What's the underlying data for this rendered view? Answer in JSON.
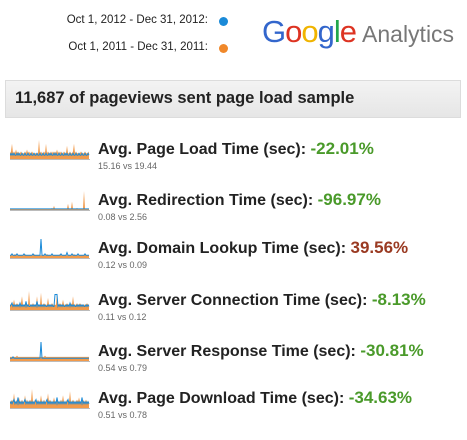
{
  "legend": [
    {
      "label": "Oct 1, 2012 - Dec 31, 2012:",
      "color": "#1a8ad8"
    },
    {
      "label": "Oct 1, 2011 - Dec 31, 2011:",
      "color": "#f0882a"
    }
  ],
  "logo": {
    "letters": [
      "G",
      "o",
      "o",
      "g",
      "l",
      "e"
    ],
    "colors": [
      "#3366cc",
      "#dd3322",
      "#f0b400",
      "#3366cc",
      "#22a64a",
      "#dd3322"
    ],
    "analytics": "Analytics"
  },
  "banner": {
    "text": "11,687 of pageviews sent page load sample"
  },
  "colors": {
    "positive": "#4a9a2a",
    "negative": "#9a3a22",
    "series_2012": "#1a8ad8",
    "series_2011": "#f0882a"
  },
  "metrics": [
    {
      "label": "Avg. Page Load Time (sec):",
      "change": "-22.01%",
      "good": true,
      "compare": "15.16 vs 19.44",
      "spark_2011": [
        3,
        4,
        8,
        3,
        4,
        3,
        5,
        3,
        4,
        3,
        3,
        4,
        3,
        3,
        3,
        4,
        3,
        5,
        3,
        4,
        3,
        3,
        4,
        3,
        3,
        3,
        3,
        3,
        3,
        10,
        3,
        4,
        3,
        3,
        4,
        3,
        8,
        3,
        4,
        3,
        3,
        4,
        3,
        4,
        3,
        4,
        3,
        5,
        3,
        4,
        3,
        4,
        3,
        3,
        4,
        3,
        3,
        7,
        3,
        3,
        4,
        3,
        3,
        4,
        8,
        3,
        4,
        3,
        3,
        3,
        3,
        4,
        3,
        3,
        3,
        4,
        3,
        3,
        3,
        4
      ],
      "spark_2012": [
        3,
        2,
        3,
        2,
        3,
        2,
        2,
        3,
        2,
        3,
        2,
        2,
        3,
        2,
        2,
        3,
        2,
        2,
        3,
        2,
        2,
        3,
        2,
        2,
        3,
        2,
        2,
        3,
        2,
        2,
        3,
        2,
        2,
        3,
        2,
        2,
        3,
        2,
        2,
        3,
        2,
        3,
        2,
        2,
        3,
        2,
        3,
        2,
        2,
        3,
        2,
        2,
        3,
        2,
        2,
        3,
        2,
        3,
        2,
        2,
        3,
        2,
        2,
        3,
        2,
        2,
        3,
        2,
        2,
        3,
        2,
        2,
        3,
        2,
        2,
        3,
        2,
        2,
        3,
        2
      ]
    },
    {
      "label": "Avg. Redirection Time (sec):",
      "change": "-96.97%",
      "good": true,
      "compare": "0.08 vs 2.56",
      "spark_2011": [
        1,
        1,
        1,
        1,
        1,
        1,
        1,
        1,
        1,
        1,
        1,
        1,
        1,
        1,
        1,
        1,
        1,
        1,
        1,
        1,
        1,
        1,
        1,
        1,
        1,
        1,
        1,
        1,
        1,
        1,
        1,
        1,
        1,
        1,
        1,
        1,
        1,
        1,
        1,
        1,
        1,
        1,
        2,
        1,
        4,
        1,
        1,
        1,
        1,
        1,
        1,
        1,
        1,
        1,
        1,
        1,
        1,
        1,
        6,
        1,
        1,
        1,
        8,
        1,
        1,
        1,
        1,
        2,
        1,
        1,
        1,
        1,
        1,
        1,
        18,
        1,
        1,
        1,
        1,
        1
      ],
      "spark_2012": [
        1,
        1,
        1,
        1,
        1,
        1,
        1,
        1,
        1,
        1,
        1,
        1,
        1,
        1,
        1,
        1,
        1,
        1,
        1,
        1,
        1,
        1,
        1,
        1,
        1,
        1,
        1,
        1,
        1,
        1,
        1,
        1,
        1,
        1,
        1,
        1,
        1,
        1,
        1,
        1,
        1,
        1,
        1,
        1,
        1,
        1,
        1,
        1,
        1,
        1,
        1,
        1,
        1,
        1,
        1,
        1,
        1,
        1,
        1,
        1,
        1,
        1,
        1,
        1,
        1,
        1,
        1,
        1,
        1,
        1,
        1,
        1,
        1,
        1,
        1,
        1,
        1,
        1,
        1,
        1
      ]
    },
    {
      "label": "Avg. Domain Lookup Time (sec):",
      "change": "39.56%",
      "good": false,
      "compare": "0.12 vs 0.09",
      "spark_2011": [
        2,
        2,
        2,
        2,
        2,
        3,
        2,
        2,
        2,
        2,
        2,
        2,
        2,
        2,
        2,
        3,
        2,
        2,
        2,
        2,
        2,
        2,
        2,
        2,
        3,
        2,
        2,
        2,
        2,
        2,
        2,
        2,
        2,
        2,
        2,
        2,
        2,
        3,
        2,
        2,
        2,
        2,
        2,
        2,
        2,
        2,
        2,
        2,
        2,
        2,
        3,
        2,
        2,
        2,
        2,
        2,
        2,
        2,
        2,
        2,
        2,
        2,
        2,
        2,
        3,
        2,
        2,
        2,
        2,
        2,
        2,
        2,
        2,
        2,
        2,
        3,
        2,
        2,
        2,
        2
      ],
      "spark_2012": [
        2,
        2,
        3,
        2,
        2,
        2,
        2,
        3,
        2,
        2,
        2,
        2,
        2,
        2,
        3,
        2,
        2,
        2,
        2,
        2,
        2,
        2,
        2,
        3,
        2,
        2,
        2,
        2,
        2,
        2,
        2,
        14,
        2,
        2,
        2,
        3,
        2,
        2,
        2,
        2,
        2,
        2,
        3,
        2,
        2,
        2,
        2,
        2,
        2,
        2,
        2,
        3,
        2,
        2,
        2,
        2,
        2,
        4,
        2,
        2,
        2,
        2,
        3,
        2,
        2,
        2,
        2,
        2,
        3,
        2,
        2,
        2,
        2,
        2,
        2,
        3,
        2,
        2,
        2,
        2
      ]
    },
    {
      "label": "Avg. Server Connection Time (sec):",
      "change": "-8.13%",
      "good": true,
      "compare": "0.11 vs 0.12",
      "spark_2011": [
        3,
        3,
        5,
        3,
        6,
        3,
        3,
        4,
        3,
        3,
        3,
        4,
        8,
        3,
        3,
        3,
        4,
        3,
        3,
        11,
        3,
        3,
        3,
        4,
        3,
        3,
        3,
        8,
        3,
        3,
        3,
        10,
        3,
        3,
        4,
        3,
        3,
        3,
        7,
        3,
        3,
        3,
        4,
        3,
        3,
        3,
        3,
        10,
        3,
        3,
        4,
        3,
        3,
        6,
        3,
        3,
        3,
        4,
        3,
        3,
        3,
        4,
        3,
        8,
        3,
        3,
        3,
        4,
        3,
        3,
        4,
        3,
        3,
        3,
        3,
        3,
        3,
        4,
        3,
        3
      ],
      "spark_2012": [
        2,
        3,
        4,
        2,
        3,
        2,
        3,
        2,
        3,
        2,
        4,
        2,
        3,
        2,
        3,
        2,
        5,
        2,
        3,
        2,
        2,
        3,
        2,
        3,
        2,
        3,
        2,
        5,
        2,
        3,
        2,
        3,
        2,
        3,
        2,
        3,
        2,
        2,
        3,
        2,
        3,
        2,
        3,
        2,
        2,
        9,
        9,
        9,
        2,
        3,
        2,
        3,
        2,
        3,
        2,
        2,
        3,
        2,
        3,
        2,
        4,
        2,
        3,
        2,
        3,
        2,
        2,
        3,
        2,
        3,
        2,
        3,
        2,
        3,
        2,
        2,
        3,
        2,
        3,
        2
      ]
    },
    {
      "label": "Avg. Server Response Time (sec):",
      "change": "-30.81%",
      "good": true,
      "compare": "0.54 vs 0.79",
      "spark_2011": [
        3,
        3,
        3,
        3,
        3,
        3,
        3,
        4,
        3,
        3,
        3,
        3,
        3,
        3,
        3,
        3,
        3,
        3,
        3,
        3,
        3,
        3,
        3,
        3,
        3,
        3,
        3,
        3,
        3,
        3,
        3,
        3,
        3,
        3,
        3,
        4,
        3,
        3,
        3,
        3,
        3,
        3,
        3,
        3,
        3,
        3,
        3,
        3,
        3,
        3,
        3,
        3,
        3,
        3,
        3,
        3,
        3,
        3,
        3,
        3,
        3,
        3,
        3,
        3,
        3,
        3,
        3,
        3,
        3,
        3,
        3,
        3,
        3,
        3,
        3,
        3,
        3,
        3,
        3,
        3
      ],
      "spark_2012": [
        2,
        2,
        2,
        3,
        2,
        2,
        2,
        2,
        2,
        2,
        2,
        2,
        2,
        2,
        2,
        2,
        2,
        2,
        2,
        2,
        2,
        2,
        2,
        2,
        2,
        2,
        2,
        2,
        2,
        2,
        2,
        14,
        2,
        2,
        2,
        2,
        2,
        2,
        2,
        2,
        2,
        2,
        2,
        2,
        2,
        2,
        2,
        2,
        2,
        2,
        2,
        2,
        2,
        2,
        2,
        2,
        2,
        2,
        2,
        2,
        2,
        2,
        2,
        2,
        2,
        2,
        2,
        2,
        2,
        2,
        2,
        2,
        2,
        2,
        2,
        2,
        2,
        2,
        2,
        2
      ]
    },
    {
      "label": "Avg. Page Download Time (sec):",
      "change": "-34.63%",
      "good": true,
      "compare": "0.51 vs 0.78",
      "spark_2011": [
        3,
        3,
        4,
        3,
        7,
        3,
        3,
        4,
        3,
        5,
        3,
        3,
        4,
        3,
        3,
        6,
        3,
        4,
        3,
        3,
        4,
        3,
        9,
        3,
        3,
        4,
        3,
        3,
        4,
        3,
        3,
        6,
        3,
        3,
        4,
        3,
        3,
        3,
        7,
        3,
        4,
        3,
        3,
        3,
        5,
        3,
        3,
        4,
        3,
        3,
        3,
        4,
        3,
        6,
        3,
        3,
        3,
        4,
        3,
        3,
        8,
        3,
        3,
        4,
        3,
        3,
        3,
        4,
        3,
        5,
        3,
        3,
        3,
        4,
        3,
        3,
        4,
        3,
        3,
        3
      ],
      "spark_2012": [
        2,
        3,
        2,
        3,
        4,
        2,
        3,
        2,
        5,
        2,
        3,
        2,
        3,
        2,
        3,
        4,
        2,
        3,
        2,
        3,
        2,
        3,
        2,
        3,
        2,
        3,
        4,
        2,
        3,
        2,
        3,
        2,
        3,
        2,
        3,
        2,
        3,
        4,
        2,
        3,
        2,
        3,
        2,
        3,
        2,
        3,
        2,
        5,
        2,
        3,
        2,
        3,
        2,
        3,
        2,
        3,
        2,
        3,
        4,
        2,
        3,
        2,
        3,
        2,
        3,
        2,
        3,
        2,
        3,
        2,
        3,
        2,
        5,
        2,
        3,
        2,
        3,
        2,
        3,
        2
      ]
    }
  ]
}
